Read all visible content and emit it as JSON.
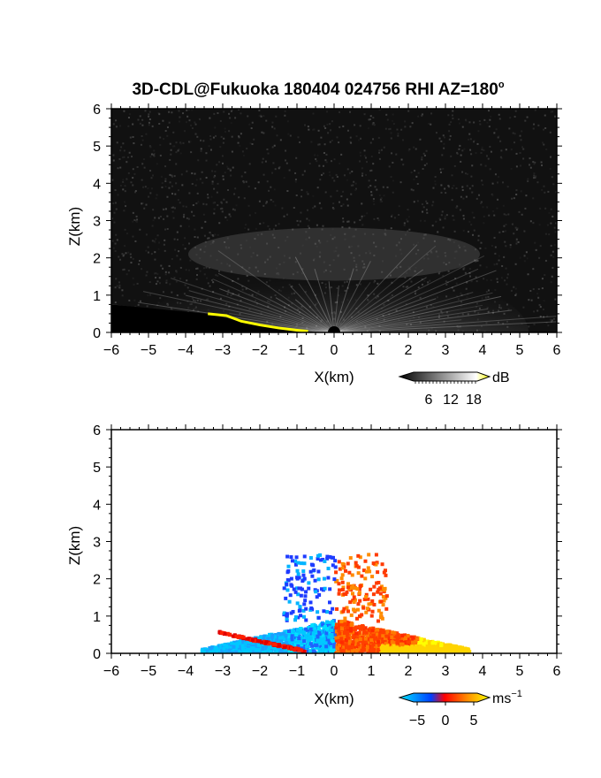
{
  "title": "3D-CDL@Fukuoka 180404 024756 RHI AZ=180",
  "title_sup": "o",
  "chart_data": [
    {
      "type": "heatmap",
      "panel": "reflectivity",
      "title": "3D-CDL@Fukuoka 180404 024756 RHI AZ=180°",
      "xlabel": "X(km)",
      "ylabel": "Z(km)",
      "xlim": [
        -6,
        6
      ],
      "ylim": [
        0,
        6
      ],
      "xticks": [
        "−6",
        "−5",
        "−4",
        "−3",
        "−2",
        "−1",
        "0",
        "1",
        "2",
        "3",
        "4",
        "5",
        "6"
      ],
      "yticks": [
        "0",
        "1",
        "2",
        "3",
        "4",
        "5",
        "6"
      ],
      "background": "#111111",
      "colorbar": {
        "unit": "dB",
        "ticks": [
          "6",
          "12",
          "18"
        ],
        "range": [
          0,
          21
        ],
        "colors": [
          "#000000",
          "#ffffff",
          "#ffff00"
        ]
      }
    },
    {
      "type": "heatmap",
      "panel": "doppler_velocity",
      "xlabel": "X(km)",
      "ylabel": "Z(km)",
      "xlim": [
        -6,
        6
      ],
      "ylim": [
        0,
        6
      ],
      "xticks": [
        "−6",
        "−5",
        "−4",
        "−3",
        "−2",
        "−1",
        "0",
        "1",
        "2",
        "3",
        "4",
        "5",
        "6"
      ],
      "yticks": [
        "0",
        "1",
        "2",
        "3",
        "4",
        "5",
        "6"
      ],
      "background": "#ffffff",
      "colorbar": {
        "unit": "ms",
        "unit_sup": "−1",
        "ticks": [
          "−5",
          "0",
          "5"
        ],
        "range": [
          -7,
          7
        ],
        "colors": [
          "#00e5ff",
          "#0044ff",
          "#ff0000",
          "#ff8800",
          "#ffff00"
        ]
      }
    }
  ]
}
